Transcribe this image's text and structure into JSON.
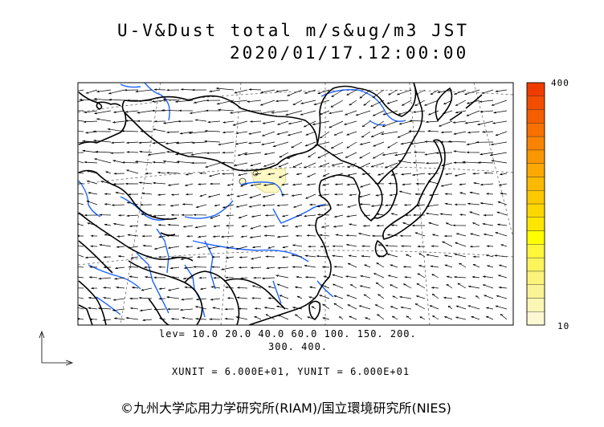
{
  "title": {
    "line1": "U-V&Dust total m/s&ug/m3 JST",
    "line2": "2020/01/17.12:00:00"
  },
  "levels": {
    "line1": "lev= 10.0 20.0 40.0 60.0 100. 150. 200.",
    "line2": "300. 400."
  },
  "units_text": "XUNIT = 6.000E+01, YUNIT = 6.000E+01",
  "copyright": "©九州大学応用力学研究所(RIAM)/国立環境研究所(NIES)",
  "colorbar": {
    "max_label": "400",
    "min_label": "10",
    "colors": [
      "#fdf8d2",
      "#fbf6b4",
      "#fbf497",
      "#fcf37a",
      "#fdf45c",
      "#fff73a",
      "#ffff00",
      "#fee500",
      "#fed700",
      "#fcc800",
      "#fbb900",
      "#fba800",
      "#fa9600",
      "#f98300",
      "#f77000",
      "#f55e00",
      "#f34d00",
      "#f13c00"
    ],
    "colors_meaning": "low to high dust concentration"
  },
  "map": {
    "coast_color": "#000000",
    "river_color": "#1e64ff",
    "dust_fill_color": "#fdf8c4",
    "arrow_color": "#000000",
    "frame_color": "#000000"
  }
}
